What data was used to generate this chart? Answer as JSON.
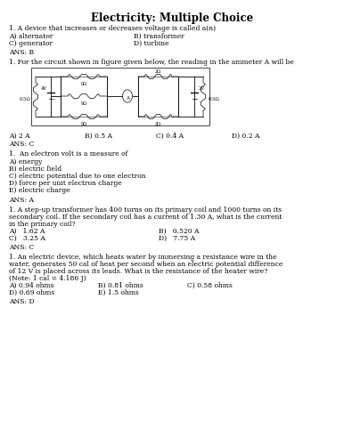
{
  "title": "Electricity: Multiple Choice",
  "background_color": "#ffffff",
  "text_color": "#000000",
  "title_fontsize": 8.5,
  "body_fontsize": 5.5,
  "small_fontsize": 4.5,
  "questions": [
    {
      "q": "1. A device that increases or decreases voltage is called a(n)",
      "options_2col": [
        [
          "A) alternator",
          "B) transformer"
        ],
        [
          "C) generator",
          "D) turbine"
        ]
      ],
      "ans": "ANS: B"
    },
    {
      "q": "1. For the circuit shown in figure given below, the reading in the ammeter A will be",
      "has_figure": true,
      "options_4col": [
        "A) 2 A",
        "B) 0.5 A",
        "C) 0.4 A",
        "D) 0.2 A"
      ],
      "ans": "ANS: C"
    },
    {
      "q": "1.  An electron volt is a measure of",
      "options_list": [
        "A) energy",
        "B) electric field",
        "C) electric potential due to one electron",
        "D) force per unit electron charge",
        "E) electric charge"
      ],
      "ans": "ANS: A"
    },
    {
      "q": "1. A step-up transformer has 400 turns on its primary coil and 1000 turns on its secondary coil. If the secondary coil has a current of 1.30 A, what is the current in the primary coil?",
      "options_2col": [
        [
          "A)   1.62 A",
          "B)   0.520 A"
        ],
        [
          "C)   3.25 A",
          "D)   7.75 A"
        ]
      ],
      "ans": "ANS: C"
    },
    {
      "q": "1. An electric device, which heats water by immersing a resistance wire in the water, generates 50 cal of heat per second when an electric potential difference of 12 V is placed across its leads. What is the resistance of the heater wire? (Note: 1 cal = 4.186 J)",
      "options_3col": [
        [
          "A) 0.94 ohms",
          "B) 0.81 ohms",
          "C) 0.58 ohms"
        ],
        [
          "D) 0.69 ohms",
          "E) 1.5 ohms",
          ""
        ]
      ],
      "ans": "ANS: D"
    }
  ]
}
